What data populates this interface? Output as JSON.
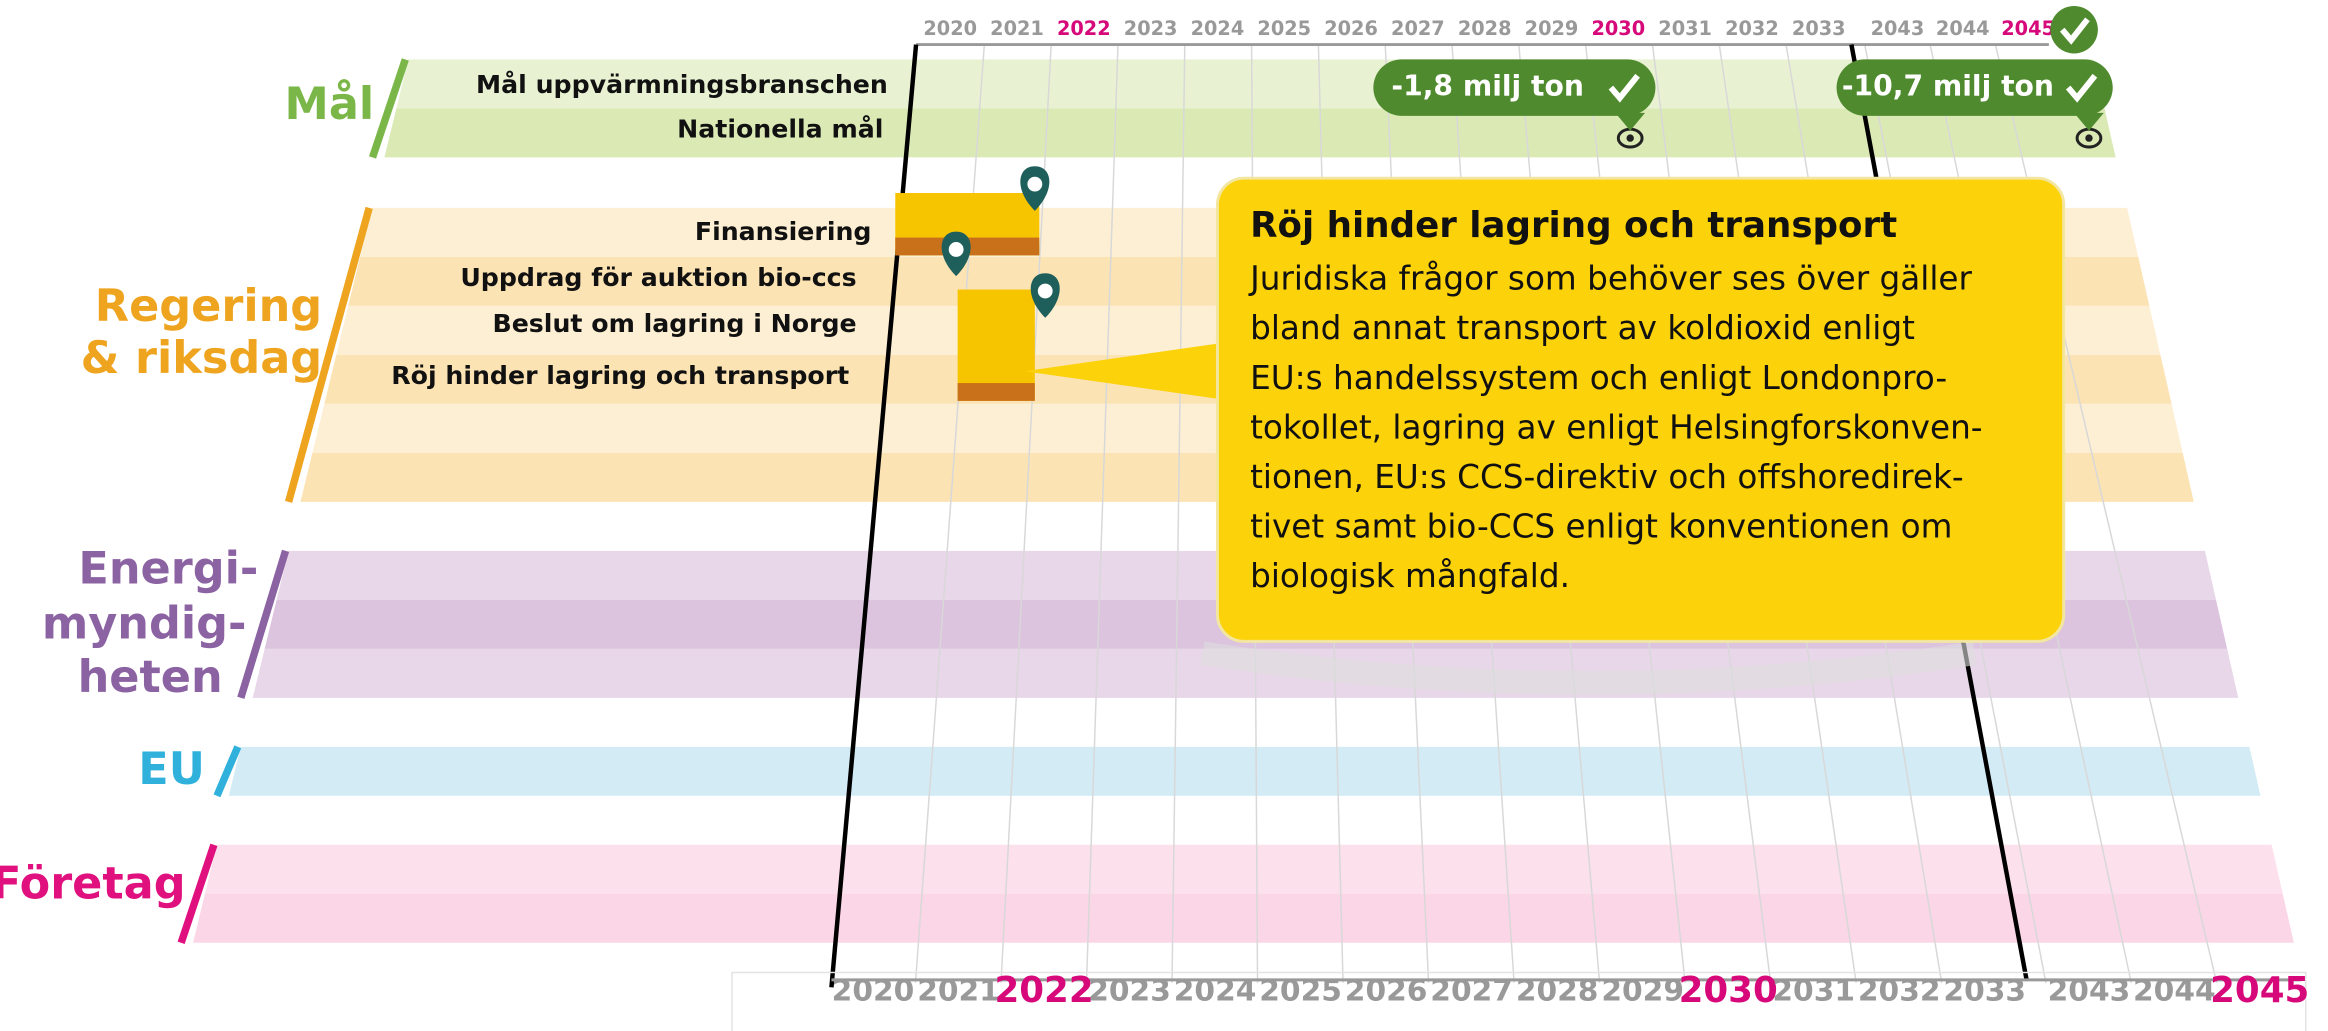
{
  "years": [
    {
      "label": "2020"
    },
    {
      "label": "2021"
    },
    {
      "label": "2022",
      "highlight": true
    },
    {
      "label": "2023"
    },
    {
      "label": "2024"
    },
    {
      "label": "2025"
    },
    {
      "label": "2026"
    },
    {
      "label": "2027"
    },
    {
      "label": "2028"
    },
    {
      "label": "2029"
    },
    {
      "label": "2030",
      "highlight": true
    },
    {
      "label": "2031"
    },
    {
      "label": "2032"
    },
    {
      "label": "2033"
    },
    {
      "label": "2043"
    },
    {
      "label": "2044"
    },
    {
      "label": "2045",
      "highlight": true
    }
  ],
  "highlight_color": "#d6087a",
  "groups": [
    {
      "name_lines": [
        "Mål"
      ],
      "color": "#7ab648",
      "bands": [
        "#e8f2d2",
        "#dbeab5"
      ],
      "rows": [
        "Mål uppvärmningsbranschen",
        "Nationella mål"
      ]
    },
    {
      "name_lines": [
        "Regering",
        "& riksdag"
      ],
      "color": "#eea41e",
      "bands": [
        "#fdefd3",
        "#fbe3b3"
      ],
      "rows": [
        "Finansiering",
        "Uppdrag för auktion bio-ccs",
        "Beslut om lagring i Norge",
        "Röj hinder lagring och transport"
      ]
    },
    {
      "name_lines": [
        "Energi-",
        "myndig-",
        "heten"
      ],
      "color": "#8b62a2",
      "bands": [
        "#e8d6e9",
        "#dcc3de"
      ],
      "rows": []
    },
    {
      "name_lines": [
        "EU"
      ],
      "color": "#2fb1dc",
      "bands": [
        "#d2ebf5",
        "#d2ebf5"
      ],
      "rows": []
    },
    {
      "name_lines": [
        "Företag"
      ],
      "color": "#e0107f",
      "bands": [
        "#fce0ec",
        "#fbd6e6"
      ],
      "rows": []
    }
  ],
  "badges": [
    "-1,8 milj ton",
    "-10,7 milj ton"
  ],
  "callout": {
    "title": "Röj hinder lagring och transport",
    "lines": [
      "Juridiska frågor som behöver ses över gäller",
      "bland annat transport av koldioxid enligt",
      "EU:s handelssystem och enligt Londonpro-",
      "tokollet, lagring av enligt Helsingforskonven-",
      "tionen, EU:s CCS-direktiv och offshoredirek-",
      "tivet samt bio-CCS enligt konventionen om",
      "biologisk mångfald."
    ]
  }
}
